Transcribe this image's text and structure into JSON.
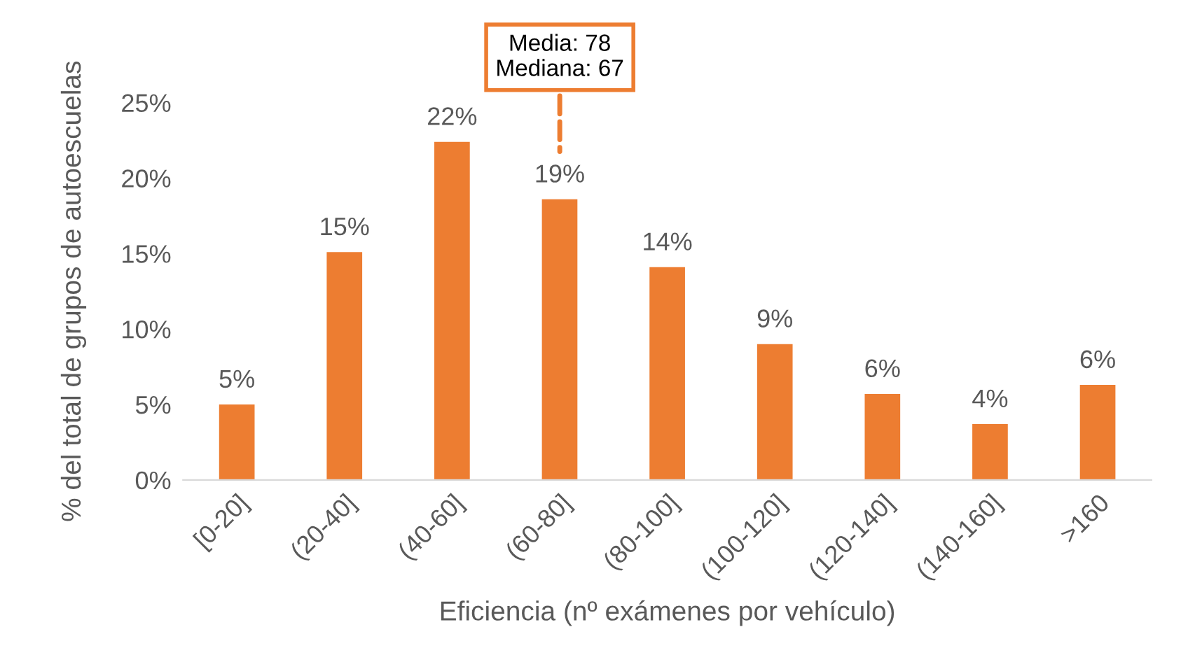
{
  "chart_data": {
    "type": "bar",
    "xlabel": "Eficiencia (nº exámenes por vehículo)",
    "ylabel": "% del total de grupos de autoescuelas",
    "categories": [
      "[0-20]",
      "(20-40]",
      "(40-60]",
      "(60-80]",
      "(80-100]",
      "(100-120]",
      "(120-140]",
      "(140-160]",
      ">160"
    ],
    "values": [
      5.0,
      15.1,
      22.4,
      18.6,
      14.1,
      9.0,
      5.7,
      3.7,
      6.3
    ],
    "value_labels": [
      "5%",
      "15%",
      "22%",
      "19%",
      "14%",
      "9%",
      "6%",
      "4%",
      "6%"
    ],
    "color": "#ed7d31",
    "ylim": [
      0,
      25
    ],
    "yticks": [
      {
        "value": 0,
        "label": "0%"
      },
      {
        "value": 5,
        "label": "5%"
      },
      {
        "value": 10,
        "label": "10%"
      },
      {
        "value": 15,
        "label": "15%"
      },
      {
        "value": 20,
        "label": "20%"
      },
      {
        "value": 25,
        "label": "25%"
      }
    ],
    "annotations": [
      "Media: 78\nMediana: 67"
    ],
    "grid": false
  }
}
